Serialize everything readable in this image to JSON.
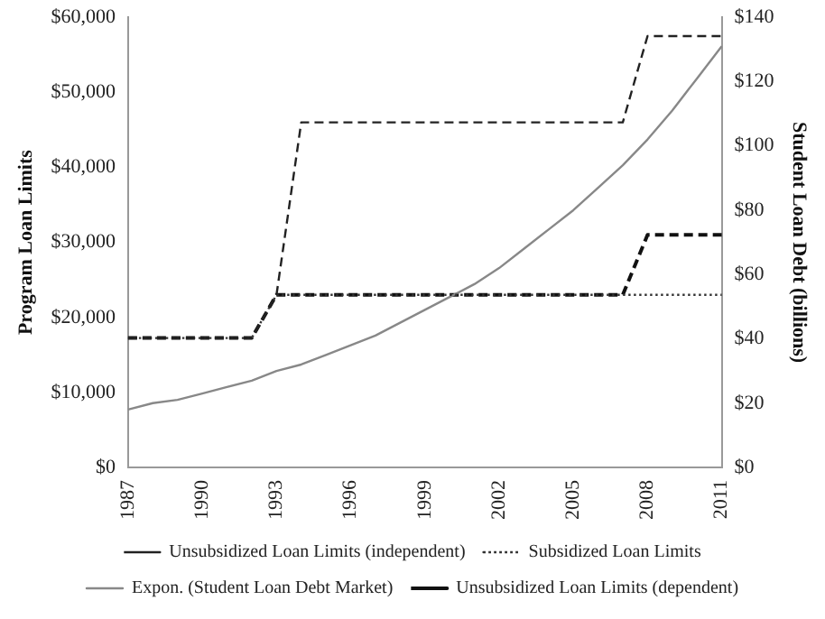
{
  "chart_data": {
    "type": "line",
    "ylabel": "Program Loan Limits",
    "y2label": "Student Loan Debt (billions)",
    "categories": [
      "1987",
      null,
      null,
      "1990",
      null,
      null,
      "1993",
      null,
      null,
      "1996",
      null,
      null,
      "1999",
      null,
      null,
      "2002",
      null,
      null,
      "2005",
      null,
      null,
      "2008",
      null,
      null,
      "2011"
    ],
    "series": [
      {
        "name": "Unsubsidized Loan Limits (independent)",
        "color": "#222222",
        "line_style": "dashed",
        "values": [
          17250,
          17250,
          17250,
          17250,
          17250,
          17250,
          23000,
          46000,
          46000,
          46000,
          46000,
          46000,
          46000,
          46000,
          46000,
          46000,
          46000,
          46000,
          46000,
          46000,
          46000,
          57500,
          57500,
          57500,
          57500
        ]
      },
      {
        "name": "Subsidized Loan Limits",
        "color": "#333333",
        "line_style": "dotted",
        "values": [
          17250,
          17250,
          17250,
          17250,
          17250,
          17250,
          23000,
          23000,
          23000,
          23000,
          23000,
          23000,
          23000,
          23000,
          23000,
          23000,
          23000,
          23000,
          23000,
          23000,
          23000,
          23000,
          23000,
          23000,
          23000
        ]
      },
      {
        "name": "Expon. (Student Loan Debt Market)",
        "color": "#888888",
        "line_style": "solid",
        "axis": "y2",
        "values": [
          18,
          20,
          21,
          23,
          25,
          27,
          30,
          32,
          35,
          38,
          41,
          45,
          49,
          53,
          57,
          62,
          68,
          74,
          80,
          87,
          94,
          102,
          111,
          121,
          131
        ]
      },
      {
        "name": "Unsubsidized Loan Limits (dependent)",
        "color": "#111111",
        "line_style": "dashed",
        "values": [
          17250,
          17250,
          17250,
          17250,
          17250,
          17250,
          23000,
          23000,
          23000,
          23000,
          23000,
          23000,
          23000,
          23000,
          23000,
          23000,
          23000,
          23000,
          23000,
          23000,
          23000,
          31000,
          31000,
          31000,
          31000
        ]
      }
    ],
    "ylim": [
      0,
      60000
    ],
    "yticks": [
      {
        "value": 0,
        "label": "$0"
      },
      {
        "value": 10000,
        "label": "$10,000"
      },
      {
        "value": 20000,
        "label": "$20,000"
      },
      {
        "value": 30000,
        "label": "$30,000"
      },
      {
        "value": 40000,
        "label": "$40,000"
      },
      {
        "value": 50000,
        "label": "$50,000"
      },
      {
        "value": 60000,
        "label": "$60,000"
      }
    ],
    "y2lim": [
      0,
      140
    ],
    "y2ticks": [
      {
        "value": 0,
        "label": "$0"
      },
      {
        "value": 20,
        "label": "$20"
      },
      {
        "value": 40,
        "label": "$40"
      },
      {
        "value": 60,
        "label": "$60"
      },
      {
        "value": 80,
        "label": "$80"
      },
      {
        "value": 100,
        "label": "$100"
      },
      {
        "value": 120,
        "label": "$120"
      },
      {
        "value": 140,
        "label": "$140"
      }
    ],
    "grid": false,
    "legend": "bottom",
    "marker": "none"
  }
}
